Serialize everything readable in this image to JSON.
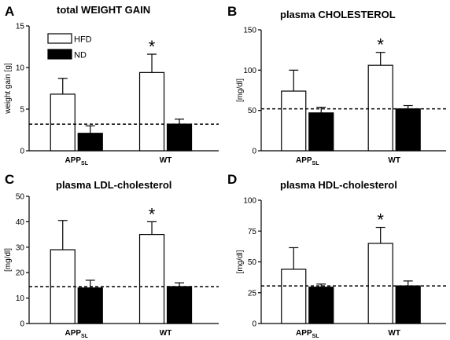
{
  "chart_data": [
    {
      "panel": "A",
      "type": "bar",
      "title": "total WEIGHT GAIN",
      "ylabel": "weight gain [g]",
      "ylim": [
        0,
        15
      ],
      "yticks": [
        0,
        5,
        10,
        15
      ],
      "categories": [
        {
          "label": "APP",
          "sub": "SL"
        },
        {
          "label": "WT",
          "sub": ""
        }
      ],
      "series": [
        {
          "name": "HFD",
          "color": "#ffffff",
          "values": [
            6.8,
            9.4
          ],
          "errors": [
            1.9,
            2.2
          ]
        },
        {
          "name": "ND",
          "color": "#000000",
          "values": [
            2.1,
            3.2
          ],
          "errors": [
            0.9,
            0.6
          ]
        }
      ],
      "reference_line": 3.2,
      "significance": [
        "",
        "*"
      ],
      "legend": {
        "visible": true,
        "position": "top-left"
      }
    },
    {
      "panel": "B",
      "type": "bar",
      "title": "plasma CHOLESTEROL",
      "ylabel": "[mg/dl]",
      "ylim": [
        0,
        150
      ],
      "yticks": [
        0,
        50,
        100,
        150
      ],
      "categories": [
        {
          "label": "APP",
          "sub": "SL"
        },
        {
          "label": "WT",
          "sub": ""
        }
      ],
      "series": [
        {
          "name": "HFD",
          "color": "#ffffff",
          "values": [
            74,
            106
          ],
          "errors": [
            26,
            16
          ]
        },
        {
          "name": "ND",
          "color": "#000000",
          "values": [
            47,
            52
          ],
          "errors": [
            7,
            4
          ]
        }
      ],
      "reference_line": 52,
      "significance": [
        "",
        "*"
      ],
      "legend": {
        "visible": false
      }
    },
    {
      "panel": "C",
      "type": "bar",
      "title": "plasma LDL-cholesterol",
      "ylabel": "[mg/dl]",
      "ylim": [
        0,
        50
      ],
      "yticks": [
        0,
        10,
        20,
        30,
        40,
        50
      ],
      "categories": [
        {
          "label": "APP",
          "sub": "SL"
        },
        {
          "label": "WT",
          "sub": ""
        }
      ],
      "series": [
        {
          "name": "HFD",
          "color": "#ffffff",
          "values": [
            29,
            35
          ],
          "errors": [
            11.5,
            5
          ]
        },
        {
          "name": "ND",
          "color": "#000000",
          "values": [
            14,
            14.5
          ],
          "errors": [
            3,
            1.5
          ]
        }
      ],
      "reference_line": 14.5,
      "significance": [
        "",
        "*"
      ],
      "legend": {
        "visible": false
      }
    },
    {
      "panel": "D",
      "type": "bar",
      "title": "plasma HDL-cholesterol",
      "ylabel": "[mg/dl]",
      "ylim": [
        0,
        100
      ],
      "yticks": [
        0,
        25,
        50,
        75,
        100
      ],
      "categories": [
        {
          "label": "APP",
          "sub": "SL"
        },
        {
          "label": "WT",
          "sub": ""
        }
      ],
      "series": [
        {
          "name": "HFD",
          "color": "#ffffff",
          "values": [
            44,
            65
          ],
          "errors": [
            17.5,
            13
          ]
        },
        {
          "name": "ND",
          "color": "#000000",
          "values": [
            29.5,
            30.5
          ],
          "errors": [
            2.5,
            4
          ]
        }
      ],
      "reference_line": 30.5,
      "significance": [
        "",
        "*"
      ],
      "legend": {
        "visible": false
      }
    }
  ]
}
